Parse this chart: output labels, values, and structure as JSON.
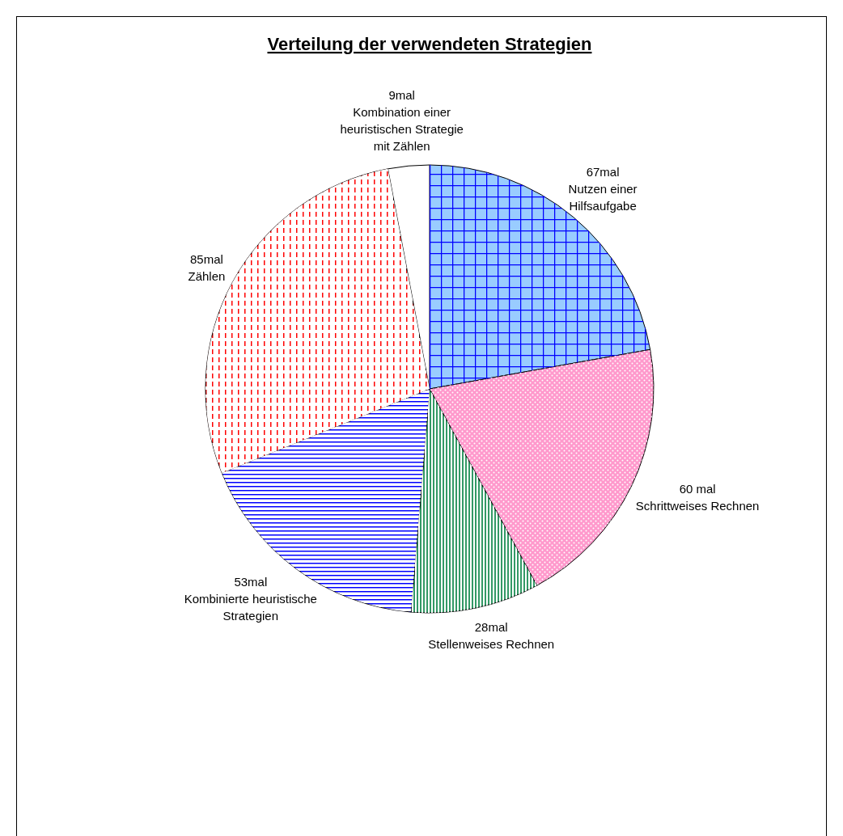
{
  "chart_data": {
    "type": "pie",
    "title": "Verteilung der verwendeten Strategien",
    "categories": [
      "Nutzen einer Hilfsaufgabe",
      "Schrittweises Rechnen",
      "Stellenweises Rechnen",
      "Kombinierte heuristische Strategien",
      "Zählen",
      "Kombination einer heuristischen Strategie mit Zählen"
    ],
    "values": [
      67,
      60,
      28,
      53,
      85,
      9
    ],
    "value_labels": [
      "67mal",
      "60 mal",
      "28mal",
      "53mal",
      "85mal",
      "9mal"
    ],
    "colors": [
      "#99ccff",
      "#ff99cc",
      "#339966",
      "#0000ff",
      "#ff0000",
      "#ffffff"
    ]
  }
}
